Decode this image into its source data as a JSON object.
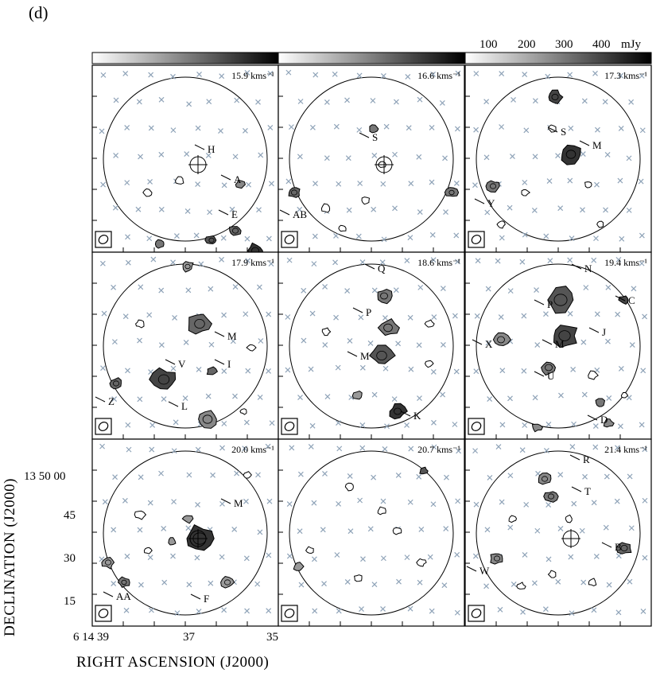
{
  "figure_label": "(d)",
  "colorbar": {
    "tick_labels": [
      "100",
      "200",
      "300",
      "400"
    ],
    "unit": "mJy"
  },
  "axes": {
    "xlabel": "RIGHT ASCENSION (J2000)",
    "ylabel": "DECLINATION (J2000)",
    "x_ticks": [
      "6 14 39",
      "37",
      "35"
    ],
    "y_ticks": [
      "13 50 00",
      "45",
      "30",
      "15"
    ]
  },
  "panels": [
    {
      "velocity": "15.9 kms⁻¹",
      "labels": [
        "H",
        "A",
        "E"
      ]
    },
    {
      "velocity": "16.6 kms⁻¹",
      "labels": [
        "S",
        "AB"
      ]
    },
    {
      "velocity": "17.3 kms⁻¹",
      "labels": [
        "S",
        "M",
        "Y"
      ]
    },
    {
      "velocity": "17.9 kms⁻¹",
      "labels": [
        "M",
        "V",
        "I",
        "Z",
        "L"
      ]
    },
    {
      "velocity": "18.6 kms⁻¹",
      "labels": [
        "Q",
        "P",
        "M",
        "K"
      ]
    },
    {
      "velocity": "19.4 kms⁻¹",
      "labels": [
        "N",
        "C",
        "P",
        "J",
        "X",
        "M",
        "U",
        "D"
      ]
    },
    {
      "velocity": "20.0 kms⁻¹",
      "labels": [
        "M",
        "AA",
        "F"
      ]
    },
    {
      "velocity": "20.7 kms⁻¹",
      "labels": []
    },
    {
      "velocity": "21.4 kms⁻¹",
      "labels": [
        "R",
        "T",
        "B",
        "W"
      ]
    }
  ]
}
